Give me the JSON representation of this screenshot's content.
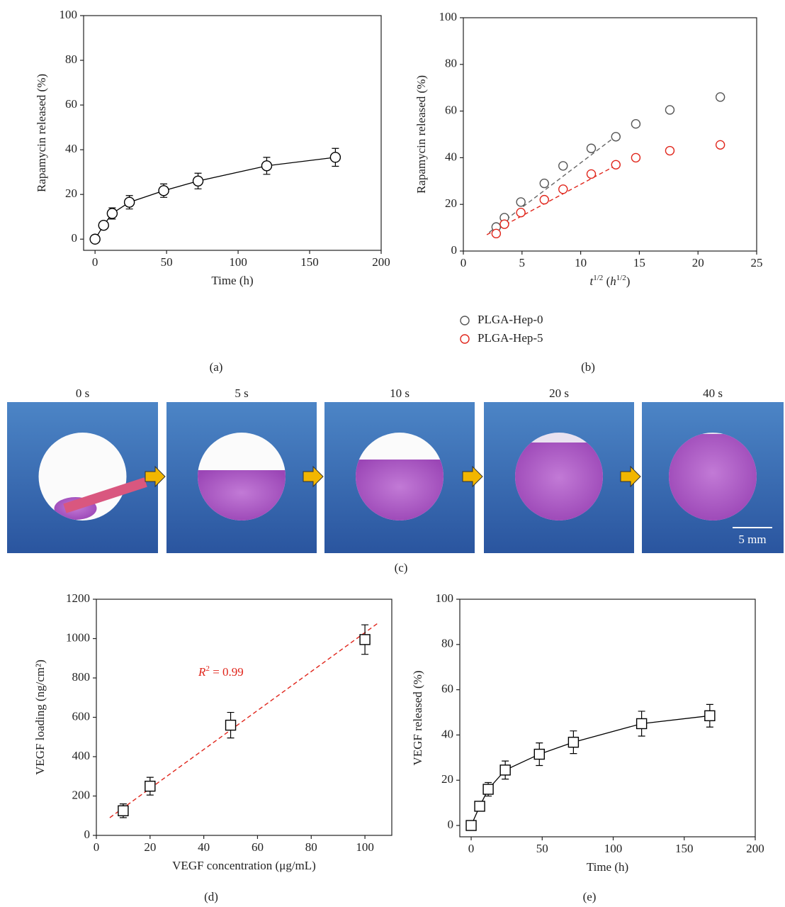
{
  "chart_data": [
    {
      "type": "line",
      "panel_label": "(a)",
      "xlabel": [
        {
          "text": "Time (h)",
          "style": ""
        }
      ],
      "ylabel": "Rapamycin released (%)",
      "marker": "circle",
      "x": [
        0,
        6,
        12,
        24,
        48,
        72,
        120,
        168
      ],
      "series": [
        {
          "color": "#000000",
          "values": [
            0,
            6.2,
            11.5,
            16.5,
            21.7,
            26,
            32.8,
            36.6
          ],
          "errors": [
            0,
            1.5,
            2.5,
            3,
            3,
            3.5,
            3.8,
            4
          ]
        }
      ],
      "xlim": [
        -8,
        200
      ],
      "xticks": [
        0,
        50,
        100,
        150,
        200
      ],
      "ylim": [
        -5,
        100
      ],
      "yticks": [
        0,
        20,
        40,
        60,
        80,
        100
      ]
    },
    {
      "type": "scatter",
      "panel_label": "(b)",
      "xlabel": [
        {
          "text": "t",
          "style": "italic"
        },
        {
          "text": "1/2",
          "style": "sup"
        },
        {
          "text": " (",
          "style": ""
        },
        {
          "text": "h",
          "style": "italic"
        },
        {
          "text": "1/2",
          "style": "sup"
        },
        {
          "text": ")",
          "style": ""
        }
      ],
      "ylabel": "Rapamycin released (%)",
      "marker": "circle",
      "x": [
        2.8,
        3.5,
        4.9,
        6.9,
        8.5,
        10.9,
        13,
        14.7,
        17.6,
        21.9
      ],
      "series": [
        {
          "name": "PLGA-Hep-0",
          "color": "#555555",
          "values": [
            10.3,
            14.3,
            21,
            29,
            36.5,
            44,
            49,
            54.5,
            60.5,
            66
          ]
        },
        {
          "name": "PLGA-Hep-5",
          "color": "#e0251b",
          "values": [
            7.5,
            11.5,
            16.5,
            22,
            26.5,
            33,
            37,
            40,
            43,
            45.5
          ]
        }
      ],
      "fits": [
        {
          "color": "#666666",
          "x": [
            2.2,
            13.2
          ],
          "y": [
            8,
            50
          ]
        },
        {
          "color": "#e0251b",
          "x": [
            2,
            13.3
          ],
          "y": [
            7,
            37.5
          ]
        }
      ],
      "xlim": [
        0,
        25
      ],
      "xticks": [
        0,
        5,
        10,
        15,
        20,
        25
      ],
      "ylim": [
        0,
        100
      ],
      "yticks": [
        0,
        20,
        40,
        60,
        80,
        100
      ]
    },
    {
      "type": "scatter",
      "panel_label": "(d)",
      "xlabel": [
        {
          "text": "VEGF concentration (μg/mL)",
          "style": ""
        }
      ],
      "ylabel": "VEGF loading (ng/cm²)",
      "marker": "square",
      "x": [
        10,
        20,
        50,
        100
      ],
      "series": [
        {
          "color": "#000000",
          "values": [
            125,
            250,
            560,
            995
          ],
          "errors": [
            35,
            45,
            65,
            75
          ]
        }
      ],
      "fits": [
        {
          "color": "#e0251b",
          "x": [
            5,
            105
          ],
          "y": [
            90,
            1080
          ]
        }
      ],
      "annotation": [
        {
          "text": "R",
          "style": "italic"
        },
        {
          "text": "2",
          "style": "sup"
        },
        {
          "text": " = 0.99",
          "style": ""
        }
      ],
      "annotation_color": "#e0251b",
      "xlim": [
        0,
        110
      ],
      "xticks": [
        0,
        20,
        40,
        60,
        80,
        100
      ],
      "ylim": [
        0,
        1200
      ],
      "yticks": [
        0,
        200,
        400,
        600,
        800,
        1000,
        1200
      ]
    },
    {
      "type": "line",
      "panel_label": "(e)",
      "xlabel": [
        {
          "text": "Time (h)",
          "style": ""
        }
      ],
      "ylabel": "VEGF released (%)",
      "marker": "square",
      "x": [
        0,
        6,
        12,
        24,
        48,
        72,
        120,
        168
      ],
      "series": [
        {
          "color": "#000000",
          "values": [
            0,
            8.5,
            16,
            24.5,
            31.5,
            36.8,
            45,
            48.5
          ],
          "errors": [
            0,
            2,
            3,
            4,
            5,
            5,
            5.5,
            5
          ]
        }
      ],
      "xlim": [
        -8,
        200
      ],
      "xticks": [
        0,
        50,
        100,
        150,
        200
      ],
      "ylim": [
        -5,
        100
      ],
      "yticks": [
        0,
        20,
        40,
        60,
        80,
        100
      ]
    }
  ],
  "photo_panel": {
    "times": [
      "0 s",
      "5 s",
      "10 s",
      "20 s",
      "40 s"
    ],
    "scale_bar": "5 mm",
    "panel_label": "(c)"
  }
}
